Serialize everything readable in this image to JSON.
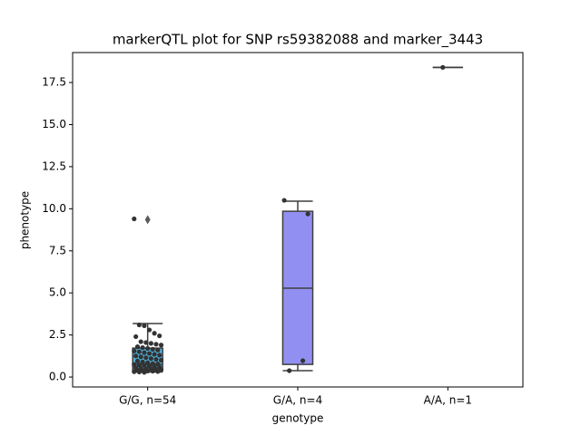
{
  "chart_data": {
    "type": "box",
    "title": "markerQTL plot for SNP rs59382088 and marker_3443",
    "xlabel": "genotype",
    "ylabel": "phenotype",
    "ylim": [
      -0.59,
      19.28
    ],
    "yticks": [
      {
        "value": 0,
        "label": "0.0"
      },
      2.5,
      {
        "value": 5,
        "label": "5.0"
      },
      7.5,
      {
        "value": 10,
        "label": "10.0"
      },
      12.5,
      {
        "value": 15,
        "label": "15.0"
      },
      17.5
    ],
    "groups": [
      {
        "category": "G/G, n=54",
        "color": "#4fb3e0",
        "box": {
          "whislo": 0.3,
          "q1": 0.4,
          "med": 0.75,
          "q3": 1.72,
          "whishi": 3.18
        },
        "fliers": [
          9.35
        ],
        "points": [
          9.4,
          3.1,
          3.05,
          2.8,
          2.6,
          2.45,
          2.4,
          2.1,
          2.05,
          2.0,
          1.95,
          1.9,
          1.8,
          1.75,
          1.7,
          1.65,
          1.6,
          1.55,
          1.5,
          1.45,
          1.4,
          1.35,
          1.3,
          1.25,
          1.2,
          1.15,
          1.1,
          1.05,
          1.0,
          0.95,
          0.9,
          0.85,
          0.8,
          0.78,
          0.75,
          0.72,
          0.7,
          0.65,
          0.6,
          0.58,
          0.55,
          0.52,
          0.5,
          0.48,
          0.45,
          0.42,
          0.4,
          0.38,
          0.36,
          0.35,
          0.33,
          0.32,
          0.3,
          0.28
        ]
      },
      {
        "category": "G/A, n=4",
        "color": "#9190f2",
        "box": {
          "whislo": 0.38,
          "q1": 0.75,
          "med": 5.28,
          "q3": 9.85,
          "whishi": 10.45
        },
        "fliers": [],
        "points": [
          0.97,
          9.69,
          10.5,
          0.38
        ]
      },
      {
        "category": "A/A, n=1",
        "color": "#c7a0e8",
        "box": {
          "whislo": 18.4,
          "q1": 18.4,
          "med": 18.4,
          "q3": 18.4,
          "whishi": 18.4
        },
        "fliers": [],
        "points": [
          18.4
        ]
      }
    ]
  }
}
